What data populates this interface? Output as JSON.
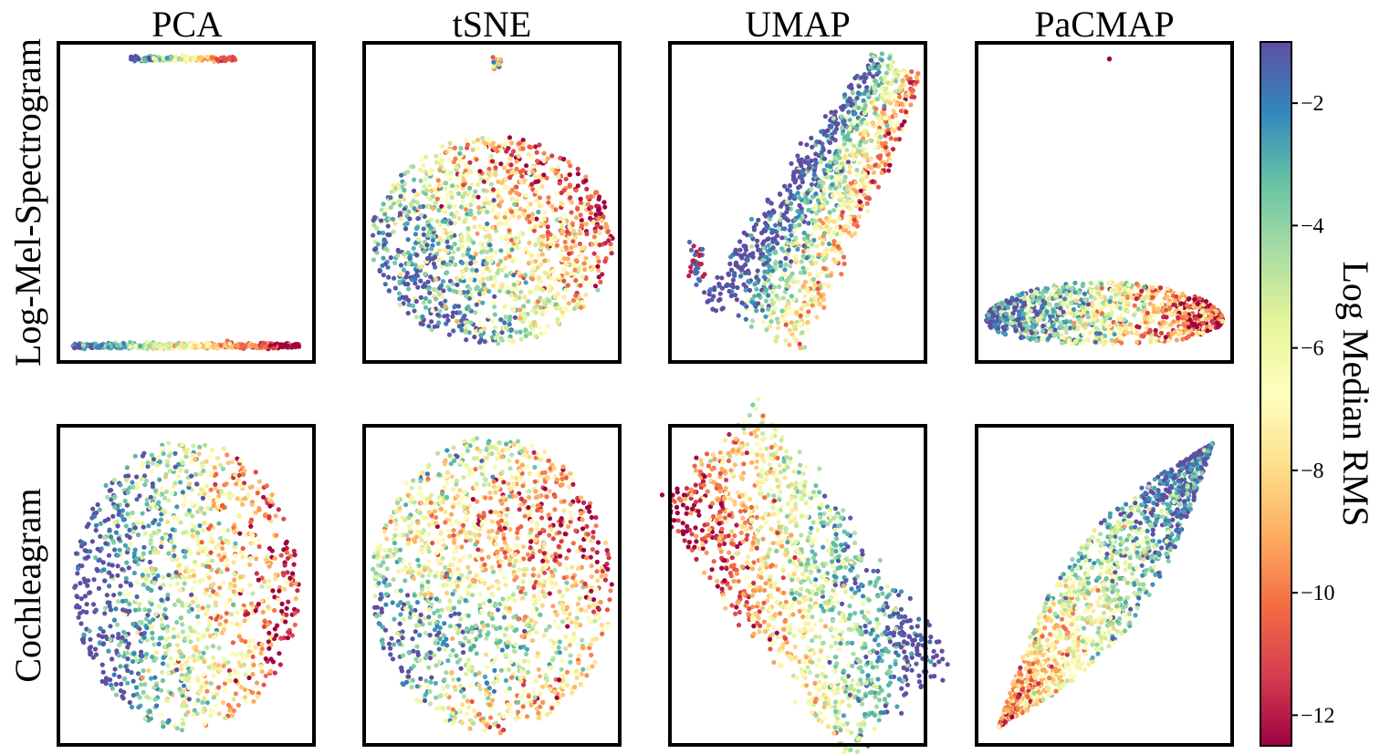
{
  "figure": {
    "column_titles": [
      "PCA",
      "tSNE",
      "UMAP",
      "PaCMAP"
    ],
    "row_labels": [
      "Log-Mel-Spectrogram",
      "Cochleagram"
    ]
  },
  "colorbar": {
    "label": "Log Median RMS",
    "colormap": "Spectral",
    "range": [
      -12.5,
      -1.0
    ],
    "ticks": [
      -2,
      -4,
      -6,
      -8,
      -10,
      -12
    ],
    "tick_labels": [
      "−2",
      "−4",
      "−6",
      "−8",
      "−10",
      "−12"
    ]
  },
  "chart_data": {
    "type": "scatter",
    "color_variable": "Log Median RMS",
    "color_range": [
      -12.5,
      -1.0
    ],
    "axes_visible": false,
    "panels": [
      {
        "row": "Log-Mel-Spectrogram",
        "column": "PCA",
        "shape": "two horizontal bands: a long thin band along the bottom and a short band at the top, colour grading blue to red left-to-right"
      },
      {
        "row": "Log-Mel-Spectrogram",
        "column": "tSNE",
        "shape": "large rounded blob with a tiny isolated cluster at the top; blue on left, red on upper right"
      },
      {
        "row": "Log-Mel-Spectrogram",
        "column": "UMAP",
        "shape": "elongated diagonal blob rising to the upper right, small separate cluster on the left; blue bottom-left, red along the upper-right edge"
      },
      {
        "row": "Log-Mel-Spectrogram",
        "column": "PaCMAP",
        "shape": "flat lens/spindle shape near the bottom with a single isolated point at the top; blue on left, red on right"
      },
      {
        "row": "Cochleagram",
        "column": "PCA",
        "shape": "rounded cloud; purple/blue on the left, yellow and red on the right"
      },
      {
        "row": "Cochleagram",
        "column": "tSNE",
        "shape": "large rounded cloud filling the panel; mixed colours, purple on the left"
      },
      {
        "row": "Cochleagram",
        "column": "UMAP",
        "shape": "broad diagonal slab from upper-left to lower-right; red/yellow upper-left, blue/purple lower-right"
      },
      {
        "row": "Cochleagram",
        "column": "PaCMAP",
        "shape": "leaf/ellipse shape along the diagonal from lower-left to upper-right; red core lower-left, blue/purple at the upper-right tip"
      }
    ]
  }
}
